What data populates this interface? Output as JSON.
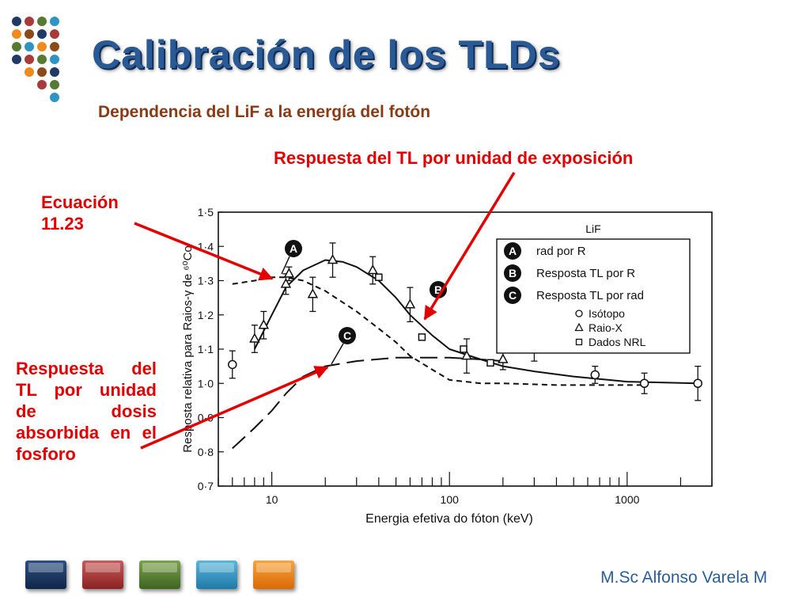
{
  "slide": {
    "title": "Calibración de los TLDs",
    "subtitle": "Dependencia del LiF a la energía del fotón",
    "annotations": {
      "tl_per_exposure": "Respuesta del TL por unidad de exposición",
      "equation": "Ecuación 11.23",
      "tl_per_dose": "Respuesta del TL por unidad de dosis absorbida en el fosforo"
    },
    "author": "M.Sc Alfonso Varela M",
    "nav_button_colors": [
      "#1f3a66",
      "#a83a3a",
      "#567a32",
      "#2f94c4",
      "#f08a1a"
    ]
  },
  "chart_data": {
    "type": "line",
    "xlabel": "Energia efetiva do fóton (keV)",
    "ylabel": "Resposta relativa para Raios-γ de ⁶⁰Co",
    "xscale": "log",
    "xlim": [
      5,
      3000
    ],
    "ylim": [
      0.7,
      1.5
    ],
    "x_tick_labels": [
      "10",
      "100",
      "1000"
    ],
    "y_tick_labels": [
      "0.7",
      "0.8",
      "0.9",
      "1.0",
      "1.1",
      "1.2",
      "1.3",
      "1.4",
      "1.5"
    ],
    "legend": {
      "title": "LiF",
      "curve_keys": [
        {
          "marker": "A",
          "label": "rad por R"
        },
        {
          "marker": "B",
          "label": "Resposta TL por R"
        },
        {
          "marker": "C",
          "label": "Resposta TL por rad"
        }
      ],
      "point_keys": [
        {
          "symbol": "circle",
          "label": "Isótopo"
        },
        {
          "symbol": "triangle",
          "label": "Raio-X"
        },
        {
          "symbol": "square",
          "label": "Dados NRL"
        }
      ]
    },
    "curve_labels": {
      "A": "A",
      "B": "B",
      "C": "C"
    },
    "curves": [
      {
        "key": "A",
        "style": "dashed",
        "x": [
          6,
          8,
          10,
          12,
          15,
          20,
          30,
          40,
          50,
          60,
          80,
          100,
          150,
          200,
          400,
          1000,
          1250
        ],
        "y": [
          1.29,
          1.3,
          1.31,
          1.31,
          1.3,
          1.27,
          1.21,
          1.16,
          1.12,
          1.08,
          1.04,
          1.01,
          1.0,
          1.0,
          0.995,
          0.995,
          0.995
        ]
      },
      {
        "key": "B",
        "style": "solid",
        "x": [
          8,
          10,
          12,
          15,
          20,
          25,
          30,
          40,
          50,
          60,
          80,
          100,
          150,
          200,
          300,
          500,
          1000,
          2500
        ],
        "y": [
          1.1,
          1.2,
          1.28,
          1.33,
          1.36,
          1.355,
          1.34,
          1.3,
          1.25,
          1.2,
          1.14,
          1.1,
          1.07,
          1.05,
          1.035,
          1.02,
          1.005,
          1.0
        ]
      },
      {
        "key": "C",
        "style": "long-dashed",
        "x": [
          6,
          8,
          10,
          12,
          15,
          20,
          30,
          50,
          80,
          100,
          150,
          200
        ],
        "y": [
          0.81,
          0.87,
          0.92,
          0.97,
          1.02,
          1.05,
          1.065,
          1.075,
          1.075,
          1.075,
          1.07,
          1.065
        ]
      }
    ],
    "points": {
      "isotope": [
        {
          "x": 6,
          "y": 1.055,
          "err": 0.04
        },
        {
          "x": 300,
          "y": 1.105,
          "err": 0.04
        },
        {
          "x": 660,
          "y": 1.025,
          "err": 0.025
        },
        {
          "x": 1250,
          "y": 1.0,
          "err": 0.03
        },
        {
          "x": 2500,
          "y": 1.0,
          "err": 0.05
        }
      ],
      "xray": [
        {
          "x": 8,
          "y": 1.13,
          "err": 0.04
        },
        {
          "x": 9,
          "y": 1.17,
          "err": 0.04
        },
        {
          "x": 12,
          "y": 1.29,
          "err": 0.03
        },
        {
          "x": 12.5,
          "y": 1.32,
          "err": 0.02
        },
        {
          "x": 17,
          "y": 1.26,
          "err": 0.05
        },
        {
          "x": 22,
          "y": 1.36,
          "err": 0.05
        },
        {
          "x": 37,
          "y": 1.33,
          "err": 0.04
        },
        {
          "x": 60,
          "y": 1.23,
          "err": 0.05
        },
        {
          "x": 125,
          "y": 1.08,
          "err": 0.05
        },
        {
          "x": 200,
          "y": 1.07,
          "err": 0.03
        }
      ],
      "nrl": [
        {
          "x": 40,
          "y": 1.31
        },
        {
          "x": 70,
          "y": 1.135
        },
        {
          "x": 120,
          "y": 1.1
        },
        {
          "x": 170,
          "y": 1.06
        }
      ]
    }
  }
}
